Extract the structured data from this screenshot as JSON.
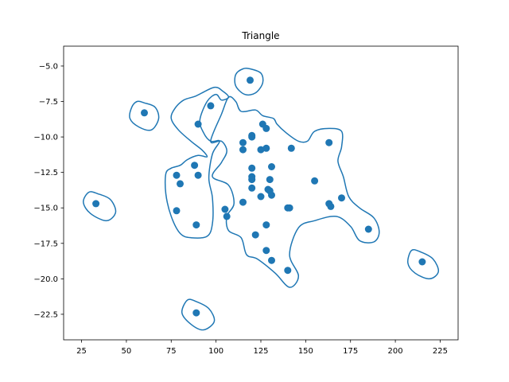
{
  "chart_data": {
    "type": "scatter",
    "title": "Triangle",
    "xlabel": "",
    "ylabel": "",
    "xlim": [
      15,
      235
    ],
    "ylim": [
      -24.3,
      -3.6
    ],
    "xticks": [
      25,
      50,
      75,
      100,
      125,
      150,
      175,
      200,
      225
    ],
    "yticks": [
      -5.0,
      -7.5,
      -10.0,
      -12.5,
      -15.0,
      -17.5,
      -20.0,
      -22.5
    ],
    "xtick_labels": [
      "25",
      "50",
      "75",
      "100",
      "125",
      "150",
      "175",
      "200",
      "225"
    ],
    "ytick_labels": [
      "−5.0",
      "−7.5",
      "−10.0",
      "−12.5",
      "−15.0",
      "−17.5",
      "−20.0",
      "−22.5"
    ],
    "grid": false,
    "color": "#1f77b4",
    "points": [
      {
        "x": 119,
        "y": -6.0
      },
      {
        "x": 60,
        "y": -8.3
      },
      {
        "x": 97,
        "y": -7.8
      },
      {
        "x": 90,
        "y": -9.1
      },
      {
        "x": 126,
        "y": -9.1
      },
      {
        "x": 128,
        "y": -9.4
      },
      {
        "x": 120,
        "y": -9.9
      },
      {
        "x": 120,
        "y": -10.0
      },
      {
        "x": 115,
        "y": -10.4
      },
      {
        "x": 115,
        "y": -10.9
      },
      {
        "x": 125,
        "y": -10.9
      },
      {
        "x": 128,
        "y": -10.8
      },
      {
        "x": 142,
        "y": -10.8
      },
      {
        "x": 163,
        "y": -10.4
      },
      {
        "x": 88,
        "y": -12.0
      },
      {
        "x": 78,
        "y": -12.7
      },
      {
        "x": 90,
        "y": -12.7
      },
      {
        "x": 80,
        "y": -13.3
      },
      {
        "x": 120,
        "y": -12.2
      },
      {
        "x": 131,
        "y": -12.1
      },
      {
        "x": 120,
        "y": -12.8
      },
      {
        "x": 120,
        "y": -13.0
      },
      {
        "x": 130,
        "y": -13.0
      },
      {
        "x": 155,
        "y": -13.1
      },
      {
        "x": 120,
        "y": -13.6
      },
      {
        "x": 129,
        "y": -13.7
      },
      {
        "x": 130,
        "y": -13.8
      },
      {
        "x": 131,
        "y": -14.1
      },
      {
        "x": 125,
        "y": -14.2
      },
      {
        "x": 170,
        "y": -14.3
      },
      {
        "x": 115,
        "y": -14.6
      },
      {
        "x": 33,
        "y": -14.7
      },
      {
        "x": 163,
        "y": -14.7
      },
      {
        "x": 164,
        "y": -14.9
      },
      {
        "x": 140,
        "y": -15.0
      },
      {
        "x": 141,
        "y": -15.0
      },
      {
        "x": 105,
        "y": -15.1
      },
      {
        "x": 78,
        "y": -15.2
      },
      {
        "x": 106,
        "y": -15.6
      },
      {
        "x": 89,
        "y": -16.2
      },
      {
        "x": 128,
        "y": -16.2
      },
      {
        "x": 185,
        "y": -16.5
      },
      {
        "x": 122,
        "y": -16.9
      },
      {
        "x": 128,
        "y": -18.0
      },
      {
        "x": 131,
        "y": -18.7
      },
      {
        "x": 215,
        "y": -18.8
      },
      {
        "x": 140,
        "y": -19.4
      },
      {
        "x": 89,
        "y": -22.4
      }
    ],
    "contours": [
      [
        [
          107,
          -7.2
        ],
        [
          103,
          -8.4
        ],
        [
          97,
          -10.3
        ],
        [
          103,
          -10.3
        ],
        [
          106,
          -11.0
        ],
        [
          103,
          -11.8
        ],
        [
          98,
          -12.8
        ],
        [
          107,
          -13.4
        ],
        [
          110,
          -14.7
        ],
        [
          106,
          -15.6
        ],
        [
          107,
          -16.6
        ],
        [
          114,
          -17.1
        ],
        [
          117,
          -18.3
        ],
        [
          123,
          -18.6
        ],
        [
          133,
          -19.6
        ],
        [
          141,
          -20.6
        ],
        [
          146,
          -19.8
        ],
        [
          141,
          -18.3
        ],
        [
          146,
          -16.4
        ],
        [
          155,
          -15.9
        ],
        [
          167,
          -15.6
        ],
        [
          175,
          -16.3
        ],
        [
          180,
          -17.3
        ],
        [
          188,
          -17.4
        ],
        [
          191,
          -16.7
        ],
        [
          188,
          -15.7
        ],
        [
          180,
          -15.0
        ],
        [
          174,
          -14.2
        ],
        [
          171,
          -12.8
        ],
        [
          168,
          -11.7
        ],
        [
          170,
          -10.7
        ],
        [
          170,
          -9.6
        ],
        [
          163,
          -9.4
        ],
        [
          155,
          -9.6
        ],
        [
          151,
          -10.3
        ],
        [
          146,
          -10.3
        ],
        [
          139,
          -9.7
        ],
        [
          134,
          -9.1
        ],
        [
          132,
          -8.7
        ],
        [
          126,
          -8.5
        ],
        [
          122,
          -8.1
        ],
        [
          114,
          -8.2
        ],
        [
          111,
          -7.5
        ],
        [
          107,
          -7.2
        ]
      ],
      [
        [
          75,
          -8.7
        ],
        [
          79,
          -9.5
        ],
        [
          86,
          -10.3
        ],
        [
          92,
          -10.9
        ],
        [
          95,
          -11.4
        ],
        [
          90,
          -11.3
        ],
        [
          84,
          -11.6
        ],
        [
          80,
          -12.0
        ],
        [
          75,
          -12.2
        ],
        [
          72,
          -12.6
        ],
        [
          72,
          -14.0
        ],
        [
          75,
          -15.6
        ],
        [
          80,
          -16.8
        ],
        [
          86,
          -17.1
        ],
        [
          95,
          -17.0
        ],
        [
          98,
          -16.1
        ],
        [
          98,
          -14.3
        ],
        [
          96,
          -12.9
        ],
        [
          98,
          -11.2
        ],
        [
          102,
          -10.3
        ],
        [
          97,
          -10.3
        ],
        [
          93,
          -9.7
        ],
        [
          91,
          -8.8
        ],
        [
          95,
          -7.5
        ],
        [
          100,
          -7.0
        ],
        [
          103,
          -7.4
        ],
        [
          107,
          -7.2
        ],
        [
          104,
          -6.8
        ],
        [
          99,
          -6.5
        ],
        [
          89,
          -7.1
        ],
        [
          82,
          -7.4
        ],
        [
          77,
          -8.0
        ],
        [
          75,
          -8.7
        ]
      ],
      [
        [
          119,
          -5.2
        ],
        [
          125,
          -5.5
        ],
        [
          126,
          -6.2
        ],
        [
          122,
          -6.9
        ],
        [
          116,
          -7.0
        ],
        [
          111,
          -6.4
        ],
        [
          111,
          -5.6
        ],
        [
          115,
          -5.2
        ],
        [
          119,
          -5.2
        ]
      ],
      [
        [
          60,
          -7.6
        ],
        [
          66,
          -7.9
        ],
        [
          68,
          -8.7
        ],
        [
          64,
          -9.5
        ],
        [
          57,
          -9.3
        ],
        [
          52,
          -8.7
        ],
        [
          53,
          -7.9
        ],
        [
          56,
          -7.5
        ],
        [
          60,
          -7.6
        ]
      ],
      [
        [
          34,
          -14.0
        ],
        [
          41,
          -14.4
        ],
        [
          44,
          -15.3
        ],
        [
          39,
          -15.9
        ],
        [
          30,
          -15.4
        ],
        [
          26,
          -14.6
        ],
        [
          29,
          -13.9
        ],
        [
          34,
          -14.0
        ]
      ],
      [
        [
          214,
          -18.1
        ],
        [
          221,
          -18.6
        ],
        [
          224,
          -19.5
        ],
        [
          219,
          -20.0
        ],
        [
          211,
          -19.6
        ],
        [
          207,
          -18.9
        ],
        [
          209,
          -18.0
        ],
        [
          214,
          -18.1
        ]
      ],
      [
        [
          89,
          -21.6
        ],
        [
          96,
          -22.1
        ],
        [
          99,
          -23.0
        ],
        [
          93,
          -23.6
        ],
        [
          86,
          -23.2
        ],
        [
          81,
          -22.4
        ],
        [
          84,
          -21.5
        ],
        [
          89,
          -21.6
        ]
      ]
    ]
  }
}
